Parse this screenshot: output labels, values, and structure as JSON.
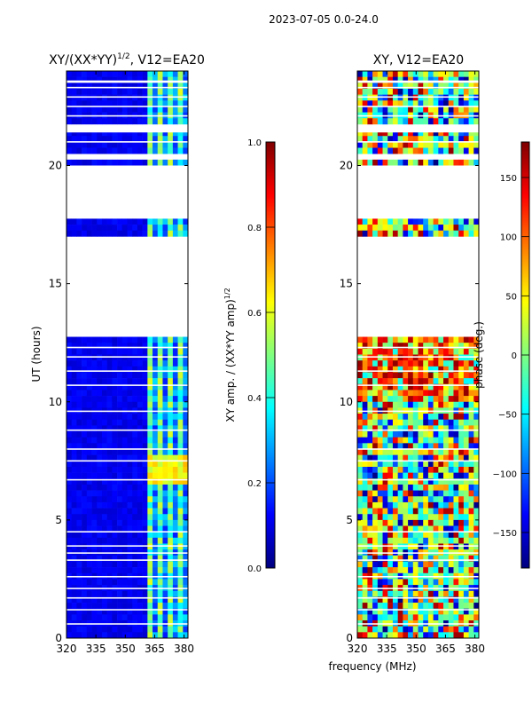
{
  "figure": {
    "suptitle": "2023-07-05 0.0-24.0",
    "xlabel": "frequency (MHz)"
  },
  "chart_data": [
    {
      "type": "heatmap",
      "title": "XY/(XX*YY)^1/2, V12=EA20",
      "title_base": "XY/(XX*YY)",
      "title_exp": "1/2",
      "title_tail": ", V12=EA20",
      "ylabel": "UT (hours)",
      "xlim": [
        320,
        382
      ],
      "ylim": [
        0,
        24
      ],
      "xticks": [
        320,
        335,
        350,
        365,
        380
      ],
      "yticks": [
        0,
        5,
        10,
        15,
        20
      ],
      "colorbar": {
        "label_base": "XY amp. / (XX*YY amp)",
        "label_exp": "1/2",
        "range": [
          0,
          1
        ],
        "ticks": [
          "0.0",
          "0.2",
          "0.4",
          "0.6",
          "0.8",
          "1.0"
        ],
        "tick_values": [
          0,
          0.2,
          0.4,
          0.6,
          0.8,
          1.0
        ]
      },
      "data_gaps_hours": [
        [
          12.8,
          16.9
        ],
        [
          17.8,
          20.0
        ],
        [
          20.3,
          20.4
        ],
        [
          21.4,
          21.7
        ],
        [
          23.5,
          23.6
        ]
      ]
    },
    {
      "type": "heatmap",
      "title": "XY, V12=EA20",
      "xlim": [
        320,
        382
      ],
      "ylim": [
        0,
        24
      ],
      "xticks": [
        320,
        335,
        350,
        365,
        380
      ],
      "yticks": [
        0,
        5,
        10,
        15,
        20
      ],
      "colorbar": {
        "label": "phase (deg.)",
        "range": [
          -180,
          180
        ],
        "ticks": [
          "150",
          "100",
          "50",
          "0",
          "−50",
          "−100",
          "−150"
        ],
        "tick_values": [
          150,
          100,
          50,
          0,
          -50,
          -100,
          -150
        ]
      },
      "data_gaps_hours": [
        [
          12.8,
          16.9
        ],
        [
          17.8,
          20.0
        ],
        [
          20.3,
          20.4
        ],
        [
          21.4,
          21.7
        ],
        [
          23.5,
          23.6
        ]
      ]
    }
  ]
}
